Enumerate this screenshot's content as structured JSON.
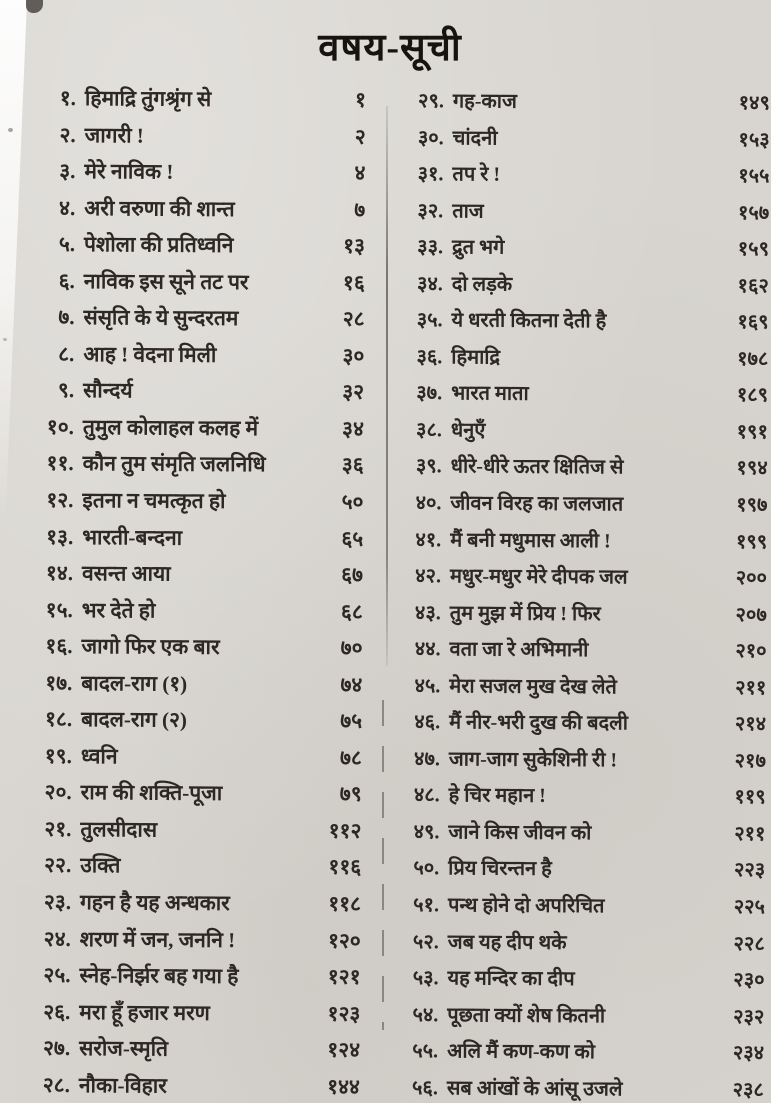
{
  "title": "वषय-सूची",
  "columns": [
    {
      "entries": [
        {
          "no": "१.",
          "title": "हिमाद्रि तुंगश्रृंग से",
          "page": "१"
        },
        {
          "no": "२.",
          "title": "जागरी !",
          "page": "२"
        },
        {
          "no": "३.",
          "title": "मेरे नाविक !",
          "page": "४"
        },
        {
          "no": "४.",
          "title": "अरी वरुणा की शान्त",
          "page": "७"
        },
        {
          "no": "५.",
          "title": "पेशोला की प्रतिध्वनि",
          "page": "१३"
        },
        {
          "no": "६.",
          "title": "नाविक इस सूने तट पर",
          "page": "१६"
        },
        {
          "no": "७.",
          "title": "संसृति के ये सुन्दरतम",
          "page": "२८"
        },
        {
          "no": "८.",
          "title": "आह ! वेदना मिली",
          "page": "३०"
        },
        {
          "no": "९.",
          "title": "सौन्दर्य",
          "page": "३२"
        },
        {
          "no": "१०.",
          "title": "तुमुल कोलाहल कलह में",
          "page": "३४"
        },
        {
          "no": "११.",
          "title": "कौन तुम संमृति जलनिधि",
          "page": "३६"
        },
        {
          "no": "१२.",
          "title": "इतना न चमत्कृत हो",
          "page": "५०"
        },
        {
          "no": "१३.",
          "title": "भारती-बन्दना",
          "page": "६५"
        },
        {
          "no": "१४.",
          "title": "वसन्त आया",
          "page": "६७"
        },
        {
          "no": "१५.",
          "title": "भर देते हो",
          "page": "६८"
        },
        {
          "no": "१६.",
          "title": "जागो फिर एक बार",
          "page": "७०"
        },
        {
          "no": "१७.",
          "title": "बादल-राग (१)",
          "page": "७४"
        },
        {
          "no": "१८.",
          "title": "बादल-राग (२)",
          "page": "७५"
        },
        {
          "no": "१९.",
          "title": "ध्वनि",
          "page": "७८"
        },
        {
          "no": "२०.",
          "title": "राम की शक्ति-पूजा",
          "page": "७९"
        },
        {
          "no": "२१.",
          "title": "तुलसीदास",
          "page": "११२"
        },
        {
          "no": "२२.",
          "title": "उक्ति",
          "page": "११६"
        },
        {
          "no": "२३.",
          "title": "गहन है यह अन्धकार",
          "page": "११८"
        },
        {
          "no": "२४.",
          "title": "शरण में जन, जननि !",
          "page": "१२०"
        },
        {
          "no": "२५.",
          "title": "स्नेह-निर्झर बह गया है",
          "page": "१२१"
        },
        {
          "no": "२६.",
          "title": "मरा हूँ हजार मरण",
          "page": "१२३"
        },
        {
          "no": "२७.",
          "title": "सरोज-स्मृति",
          "page": "१२४"
        },
        {
          "no": "२८.",
          "title": "नौका-विहार",
          "page": "१४४"
        }
      ]
    },
    {
      "entries": [
        {
          "no": "२९.",
          "title": "गह-काज",
          "page": "१४९"
        },
        {
          "no": "३०.",
          "title": "चांदनी",
          "page": "१५३"
        },
        {
          "no": "३१.",
          "title": "तप रे !",
          "page": "१५५"
        },
        {
          "no": "३२.",
          "title": "ताज",
          "page": "१५७"
        },
        {
          "no": "३३.",
          "title": "द्रुत भगे",
          "page": "१५९"
        },
        {
          "no": "३४.",
          "title": "दो लड़के",
          "page": "१६२"
        },
        {
          "no": "३५.",
          "title": "ये धरती कितना देती है",
          "page": "१६९"
        },
        {
          "no": "३६.",
          "title": "हिमाद्रि",
          "page": "१७८"
        },
        {
          "no": "३७.",
          "title": "भारत माता",
          "page": "१८९"
        },
        {
          "no": "३८.",
          "title": "धेनुएँ",
          "page": "१९१"
        },
        {
          "no": "३९.",
          "title": "धीरे-धीरे ऊतर क्षितिज से",
          "page": "१९४"
        },
        {
          "no": "४०.",
          "title": "जीवन विरह का जलजात",
          "page": "१९७"
        },
        {
          "no": "४१.",
          "title": "मैं बनी मधुमास आली !",
          "page": "१९९"
        },
        {
          "no": "४२.",
          "title": "मधुर-मधुर मेरे दीपक जल",
          "page": "२००"
        },
        {
          "no": "४३.",
          "title": "तुम मुझ में प्रिय ! फिर",
          "page": "२०७"
        },
        {
          "no": "४४.",
          "title": "वता जा रे अभिमानी",
          "page": "२१०"
        },
        {
          "no": "४५.",
          "title": "मेरा सजल मुख देख लेते",
          "page": "२११"
        },
        {
          "no": "४६.",
          "title": "मैं नीर-भरी दुख की बदली",
          "page": "२१४"
        },
        {
          "no": "४७.",
          "title": "जाग-जाग सुकेशिनी री !",
          "page": "२१७"
        },
        {
          "no": "४८.",
          "title": "हे चिर महान !",
          "page": "११९"
        },
        {
          "no": "४९.",
          "title": "जाने किस जीवन को",
          "page": "२११"
        },
        {
          "no": "५०.",
          "title": "प्रिय चिरन्तन है",
          "page": "२२३"
        },
        {
          "no": "५१.",
          "title": "पन्थ होने दो अपरिचित",
          "page": "२२५"
        },
        {
          "no": "५२.",
          "title": "जब यह दीप थके",
          "page": "२२८"
        },
        {
          "no": "५३.",
          "title": "यह मन्दिर का दीप",
          "page": "२३०"
        },
        {
          "no": "५४.",
          "title": "पूछता क्यों शेष कितनी",
          "page": "२३२"
        },
        {
          "no": "५५.",
          "title": "अलि मैं कण-कण को",
          "page": "२३४"
        },
        {
          "no": "५६.",
          "title": "सब आंखों के आंसू उजले",
          "page": "२३८"
        }
      ]
    }
  ]
}
